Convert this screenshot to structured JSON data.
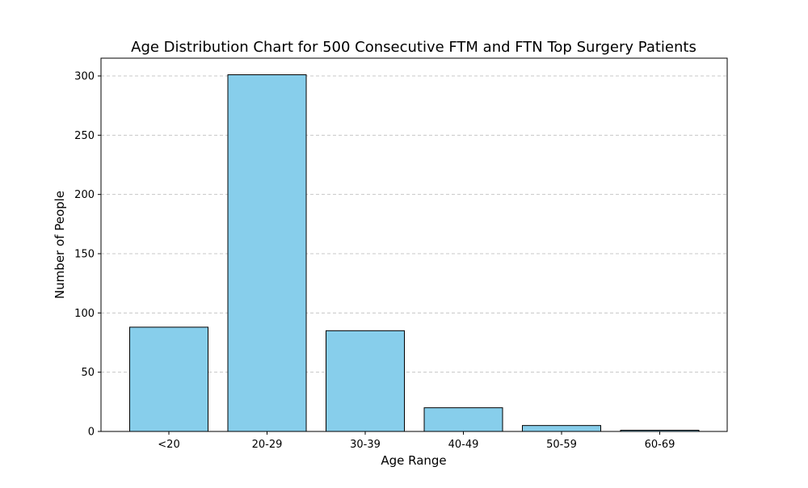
{
  "chart_data": {
    "type": "bar",
    "title": "Age Distribution Chart for 500 Consecutive FTM and FTN Top Surgery Patients",
    "xlabel": "Age Range",
    "ylabel": "Number of People",
    "categories": [
      "<20",
      "20-29",
      "30-39",
      "40-49",
      "50-59",
      "60-69"
    ],
    "values": [
      88,
      301,
      85,
      20,
      5,
      1
    ],
    "ylim": [
      0,
      315
    ],
    "yticks": [
      "0",
      "50",
      "100",
      "150",
      "200",
      "250",
      "300"
    ],
    "grid": "y-dashed",
    "bar_color": "#87CEEB",
    "bar_edge_color": "#000000"
  }
}
